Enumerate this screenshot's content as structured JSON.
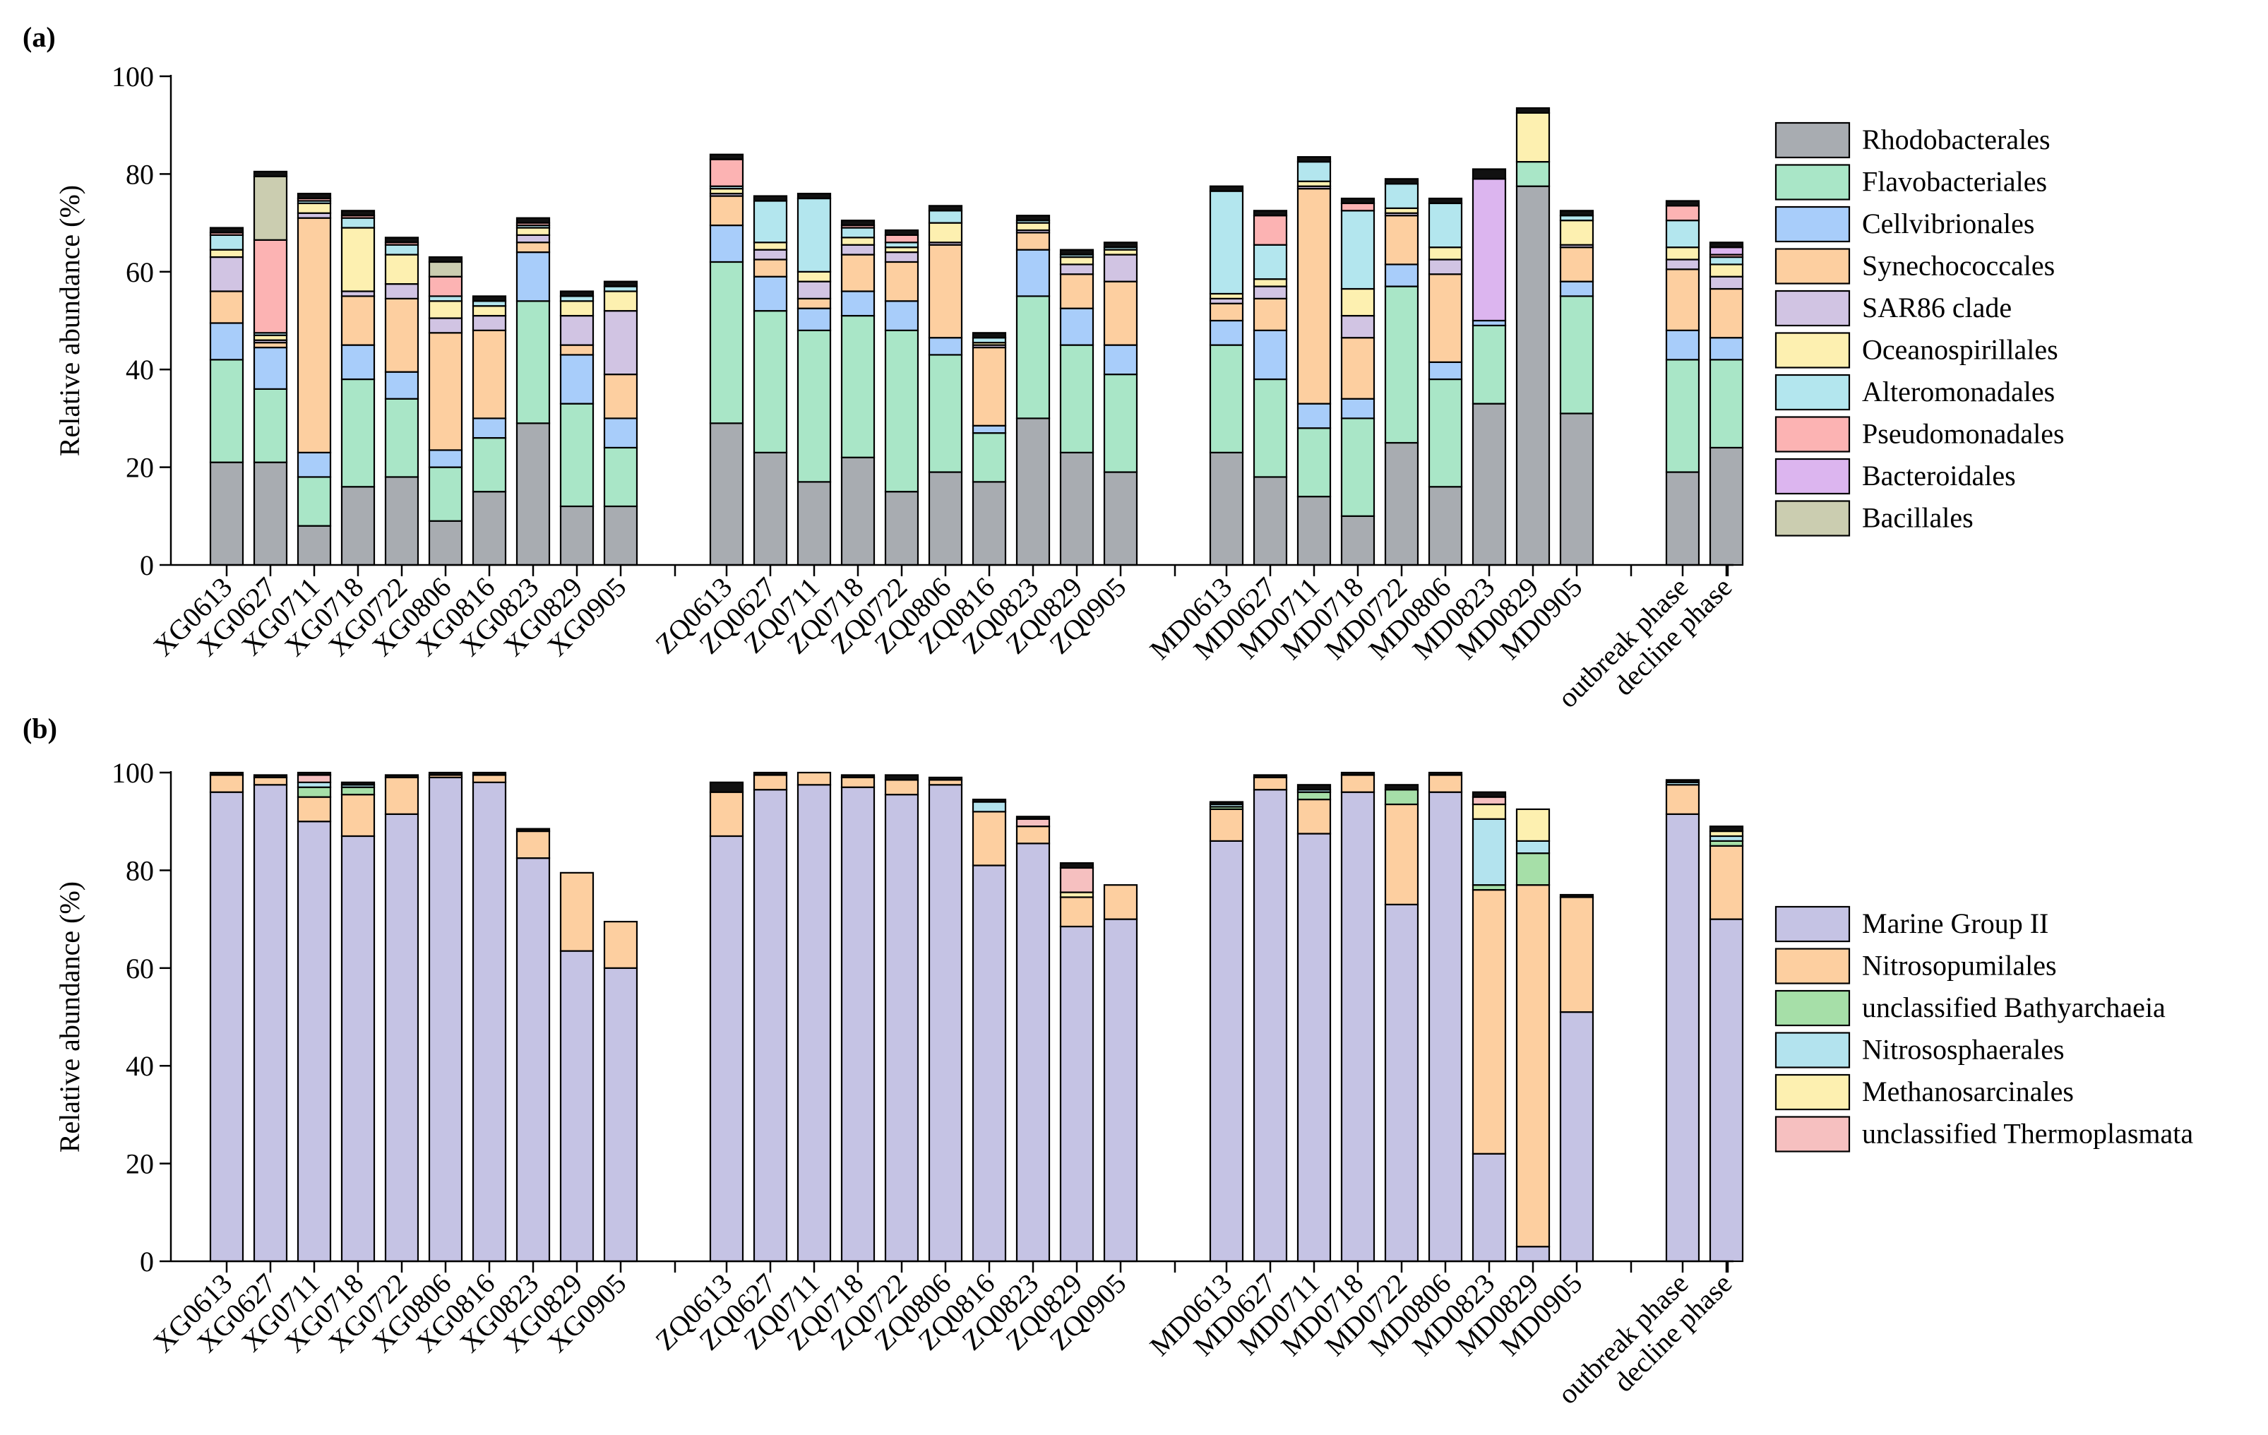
{
  "chart_data": [
    {
      "panel_label": "(a)",
      "type": "bar",
      "stacked": true,
      "title": "",
      "xlabel": "",
      "ylabel": "Relative abundance (%)",
      "ylim": [
        0,
        100
      ],
      "yticks": [
        0,
        20,
        40,
        60,
        80,
        100
      ],
      "groups": [
        [
          "XG0613",
          "XG0627",
          "XG0711",
          "XG0718",
          "XG0722",
          "XG0806",
          "XG0816",
          "XG0823",
          "XG0829",
          "XG0905"
        ],
        [
          "ZQ0613",
          "ZQ0627",
          "ZQ0711",
          "ZQ0718",
          "ZQ0722",
          "ZQ0806",
          "ZQ0816",
          "ZQ0823",
          "ZQ0829",
          "ZQ0905"
        ],
        [
          "MD0613",
          "MD0627",
          "MD0711",
          "MD0718",
          "MD0722",
          "MD0806",
          "MD0823",
          "MD0829",
          "MD0905"
        ],
        [
          "outbreak phase",
          "decline phase"
        ]
      ],
      "legend_position": "right",
      "series": [
        {
          "name": "Rhodobacterales",
          "color": "#a8acb1",
          "values": [
            21,
            21,
            8,
            16,
            18,
            9,
            15,
            29,
            12,
            12,
            29,
            23,
            17,
            22,
            15,
            19,
            17,
            30,
            23,
            19,
            23,
            18,
            14,
            10,
            25,
            16,
            33,
            77.5,
            31,
            19,
            24
          ]
        },
        {
          "name": "Flavobacteriales",
          "color": "#a9e6c7",
          "values": [
            21,
            15,
            10,
            22,
            16,
            11,
            11,
            25,
            21,
            12,
            33,
            29,
            31,
            29,
            33,
            24,
            10,
            25,
            22,
            20,
            22,
            20,
            14,
            20,
            32,
            22,
            16,
            5,
            24,
            23,
            18
          ]
        },
        {
          "name": "Cellvibrionales",
          "color": "#a8cdfa",
          "values": [
            7.5,
            8.5,
            5,
            7,
            5.5,
            3.5,
            4,
            10,
            10,
            6,
            7.5,
            7,
            4.5,
            5,
            6,
            3.5,
            1.5,
            9.5,
            7.5,
            6,
            5,
            10,
            5,
            4,
            4.5,
            3.5,
            1,
            0,
            3,
            6,
            4.5
          ]
        },
        {
          "name": "Synechococcales",
          "color": "#fdcfa0",
          "values": [
            6.5,
            1,
            48,
            10,
            15,
            24,
            18,
            2,
            2,
            9,
            6,
            3.5,
            2,
            7.5,
            8,
            19,
            16,
            3.5,
            7,
            13,
            3.5,
            6.5,
            44,
            12.5,
            10,
            18,
            0,
            0,
            7,
            12.5,
            10
          ]
        },
        {
          "name": "SAR86 clade",
          "color": "#d1c4e3",
          "values": [
            7,
            0.5,
            1,
            1,
            3,
            3,
            3,
            1.5,
            6,
            13,
            0.5,
            2,
            3.5,
            2,
            2,
            0.5,
            0.5,
            0.5,
            2,
            5.5,
            1,
            2.5,
            0.5,
            4.5,
            0.5,
            3,
            0,
            0,
            0.5,
            2,
            2.5
          ]
        },
        {
          "name": "Oceanospirillales",
          "color": "#fdf0b0",
          "values": [
            1.5,
            1,
            2,
            13,
            6,
            3.5,
            2,
            1.5,
            3,
            4,
            1,
            1.5,
            2,
            1.5,
            1,
            4,
            0.5,
            1.5,
            1.5,
            1,
            1,
            1.5,
            1,
            5.5,
            1,
            2.5,
            0,
            10,
            5,
            2.5,
            2.5
          ]
        },
        {
          "name": "Alteromonadales",
          "color": "#b3e6ee",
          "values": [
            3,
            0.5,
            0.5,
            2,
            2,
            1,
            1,
            0.5,
            1,
            1,
            0.5,
            8.5,
            15,
            2,
            1,
            2.5,
            1,
            0.5,
            0.5,
            0.5,
            21,
            7,
            4,
            16,
            5,
            9,
            0,
            0,
            1,
            5.5,
            1.5
          ]
        },
        {
          "name": "Pseudomonadales",
          "color": "#fcb3b3",
          "values": [
            0.5,
            19,
            0.5,
            0.5,
            0.5,
            4,
            0,
            0.5,
            0,
            0,
            5.5,
            0,
            0,
            0.5,
            1.5,
            0,
            0,
            0,
            0,
            0,
            0,
            6,
            0,
            1.5,
            0,
            0,
            0,
            0,
            0,
            3,
            0.5
          ]
        },
        {
          "name": "Bacteroidales",
          "color": "#dcb5ef",
          "values": [
            0,
            0,
            0,
            0,
            0,
            0,
            0,
            0,
            0,
            0,
            0,
            0,
            0,
            0,
            0,
            0,
            0,
            0,
            0,
            0,
            0,
            0,
            0,
            0,
            0,
            0,
            29,
            0,
            0,
            0,
            1.5
          ]
        },
        {
          "name": "Bacillales",
          "color": "#cbcdb0",
          "values": [
            0,
            13,
            0,
            0,
            0,
            3,
            0,
            0,
            0,
            0,
            0,
            0,
            0,
            0,
            0,
            0,
            0,
            0,
            0,
            0,
            0,
            0,
            0,
            0,
            0,
            0,
            0,
            0,
            0,
            0,
            0
          ]
        },
        {
          "name": "Other",
          "color": "#111111",
          "show_in_legend": false,
          "values": [
            1,
            1,
            1,
            1,
            1,
            1,
            1,
            1,
            1,
            1,
            1,
            1,
            1,
            1,
            1,
            1,
            1,
            1,
            1,
            1,
            1,
            1,
            1,
            1,
            1,
            1,
            2,
            1,
            1,
            1,
            1
          ]
        }
      ]
    },
    {
      "panel_label": "(b)",
      "type": "bar",
      "stacked": true,
      "title": "",
      "xlabel": "",
      "ylabel": "Relative abundance (%)",
      "ylim": [
        0,
        100
      ],
      "yticks": [
        0,
        20,
        40,
        60,
        80,
        100
      ],
      "groups": [
        [
          "XG0613",
          "XG0627",
          "XG0711",
          "XG0718",
          "XG0722",
          "XG0806",
          "XG0816",
          "XG0823",
          "XG0829",
          "XG0905"
        ],
        [
          "ZQ0613",
          "ZQ0627",
          "ZQ0711",
          "ZQ0718",
          "ZQ0722",
          "ZQ0806",
          "ZQ0816",
          "ZQ0823",
          "ZQ0829",
          "ZQ0905"
        ],
        [
          "MD0613",
          "MD0627",
          "MD0711",
          "MD0718",
          "MD0722",
          "MD0806",
          "MD0823",
          "MD0829",
          "MD0905"
        ],
        [
          "outbreak phase",
          "decline phase"
        ]
      ],
      "legend_position": "right",
      "series": [
        {
          "name": "Marine Group II",
          "color": "#c5c3e4",
          "values": [
            96,
            97.5,
            90,
            87,
            91.5,
            99,
            98,
            82.5,
            63.5,
            60,
            87,
            96.5,
            97.5,
            97,
            95.5,
            97.5,
            81,
            85.5,
            68.5,
            70,
            86,
            96.5,
            87.5,
            96,
            73,
            96,
            22,
            3,
            51,
            91.5,
            70
          ]
        },
        {
          "name": "Nitrosopumilales",
          "color": "#fdcfa0",
          "values": [
            3.5,
            1.5,
            5,
            8.5,
            7.5,
            0.5,
            1.5,
            5.5,
            16,
            9.5,
            9,
            3,
            2.5,
            2,
            3,
            1,
            11,
            3.5,
            6,
            7,
            6.5,
            2.5,
            7,
            3.5,
            20.5,
            3.5,
            54,
            74,
            23.5,
            6,
            15
          ]
        },
        {
          "name": "unclassified Bathyarchaeia",
          "color": "#a6dfa8",
          "values": [
            0,
            0,
            2,
            1.5,
            0,
            0,
            0,
            0,
            0,
            0,
            0,
            0,
            0,
            0,
            0,
            0,
            0,
            0,
            0,
            0,
            0.5,
            0,
            1.5,
            0,
            3,
            0,
            1,
            6.5,
            0,
            0,
            1
          ]
        },
        {
          "name": "Nitrososphaerales",
          "color": "#b3e3ee",
          "values": [
            0,
            0,
            1,
            0.5,
            0,
            0,
            0,
            0,
            0,
            0,
            0,
            0,
            0,
            0,
            0,
            0,
            2,
            0,
            0,
            0,
            0.5,
            0,
            0.5,
            0,
            0,
            0,
            13.5,
            2.5,
            0,
            0.5,
            1
          ]
        },
        {
          "name": "Methanosarcinales",
          "color": "#fdf0b0",
          "values": [
            0,
            0,
            0,
            0,
            0,
            0,
            0,
            0,
            0,
            0,
            0,
            0,
            0,
            0,
            0,
            0,
            0,
            0,
            1,
            0,
            0,
            0,
            0,
            0,
            0,
            0,
            3,
            6.5,
            0,
            0,
            1
          ]
        },
        {
          "name": "unclassified Thermoplasmata",
          "color": "#f6c0c0",
          "values": [
            0,
            0,
            1.5,
            0,
            0,
            0,
            0,
            0,
            0,
            0,
            0,
            0,
            0,
            0,
            0,
            0,
            0,
            1.5,
            5,
            0,
            0,
            0,
            0,
            0,
            0,
            0,
            1.5,
            0,
            0,
            0,
            0
          ]
        },
        {
          "name": "Other",
          "color": "#111111",
          "show_in_legend": false,
          "values": [
            0.5,
            0.5,
            0.5,
            0.5,
            0.5,
            0.5,
            0.5,
            0.5,
            0,
            0,
            2,
            0.5,
            0,
            0.5,
            1,
            0.5,
            0.5,
            0.5,
            1,
            0,
            0.5,
            0.5,
            1,
            0.5,
            1,
            0.5,
            1,
            0,
            0.5,
            0.5,
            1
          ]
        }
      ]
    }
  ]
}
